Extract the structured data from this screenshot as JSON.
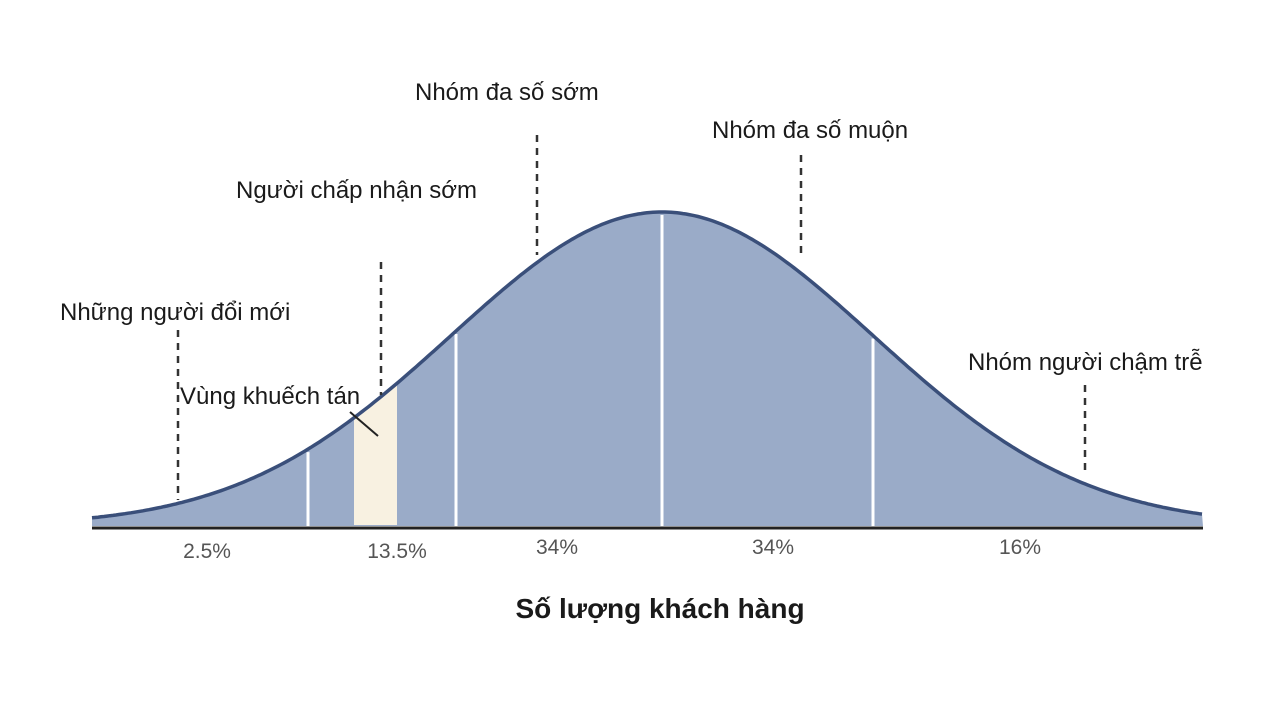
{
  "groups": [
    {
      "label": "Những người đổi mới"
    },
    {
      "label": "Người chấp nhận sớm"
    },
    {
      "label": "Nhóm đa số sớm"
    },
    {
      "label": "Nhóm đa số muộn"
    },
    {
      "label": "Nhóm người chậm trễ"
    }
  ],
  "segments": [
    {
      "label": "2.5%"
    },
    {
      "label": "13.5%"
    },
    {
      "label": "34%"
    },
    {
      "label": "34%"
    },
    {
      "label": "16%"
    }
  ],
  "annotation": "Vùng khuếch tán",
  "axis_title": "Số lượng khách hàng"
}
